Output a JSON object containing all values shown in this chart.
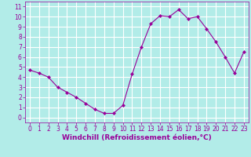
{
  "x": [
    0,
    1,
    2,
    3,
    4,
    5,
    6,
    7,
    8,
    9,
    10,
    11,
    12,
    13,
    14,
    15,
    16,
    17,
    18,
    19,
    20,
    21,
    22,
    23
  ],
  "y": [
    4.7,
    4.4,
    4.0,
    3.0,
    2.5,
    2.0,
    1.4,
    0.8,
    0.4,
    0.4,
    1.2,
    4.3,
    7.0,
    9.3,
    10.1,
    10.0,
    10.7,
    9.8,
    10.0,
    8.8,
    7.5,
    6.0,
    4.4,
    6.5
  ],
  "line_color": "#990099",
  "marker": "D",
  "marker_size": 2,
  "bg_color": "#b2ece8",
  "grid_color": "#ffffff",
  "xlabel": "Windchill (Refroidissement éolien,°C)",
  "xlabel_color": "#990099",
  "xlabel_fontsize": 6.5,
  "tick_color": "#990099",
  "tick_fontsize": 5.5,
  "xlim": [
    -0.5,
    23.5
  ],
  "ylim": [
    -0.5,
    11.5
  ],
  "yticks": [
    0,
    1,
    2,
    3,
    4,
    5,
    6,
    7,
    8,
    9,
    10,
    11
  ],
  "xticks": [
    0,
    1,
    2,
    3,
    4,
    5,
    6,
    7,
    8,
    9,
    10,
    11,
    12,
    13,
    14,
    15,
    16,
    17,
    18,
    19,
    20,
    21,
    22,
    23
  ]
}
